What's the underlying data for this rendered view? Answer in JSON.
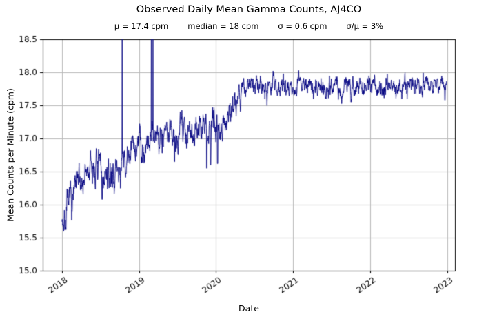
{
  "chart_data": {
    "type": "line",
    "title": "Observed Daily Mean Gamma Counts, AJ4CO",
    "stats_items": [
      "μ = 17.4 cpm",
      "median = 18 cpm",
      "σ = 0.6 cpm",
      "σ/μ = 3%"
    ],
    "xlabel": "Date",
    "ylabel": "Mean Counts per Minute (cpm)",
    "xlim": [
      2017.75,
      2023.1
    ],
    "ylim": [
      15.0,
      18.5
    ],
    "xticks": [
      2018,
      2019,
      2020,
      2021,
      2022,
      2023
    ],
    "yticks": [
      15.0,
      15.5,
      16.0,
      16.5,
      17.0,
      17.5,
      18.0,
      18.5
    ],
    "grid": true,
    "grid_color": "#b8b8b8",
    "spine_color": "#000000",
    "text_color": "#000000",
    "legend": "none",
    "series": [
      {
        "name": "daily-mean-gamma-counts",
        "color": "#000080",
        "x_start": 2018.0,
        "x_end": 2022.99,
        "seed": 7,
        "noise_sd_early": 0.13,
        "noise_sd_late": 0.085,
        "noise_transition_x": 2020.35,
        "trend_keypoints": [
          [
            2018.0,
            15.82
          ],
          [
            2018.04,
            15.72
          ],
          [
            2018.08,
            15.95
          ],
          [
            2018.14,
            16.1
          ],
          [
            2018.2,
            16.28
          ],
          [
            2018.28,
            16.4
          ],
          [
            2018.37,
            16.5
          ],
          [
            2018.45,
            16.58
          ],
          [
            2018.52,
            16.42
          ],
          [
            2018.6,
            16.38
          ],
          [
            2018.68,
            16.48
          ],
          [
            2018.76,
            16.52
          ],
          [
            2018.84,
            16.6
          ],
          [
            2018.92,
            16.85
          ],
          [
            2019.0,
            16.95
          ],
          [
            2019.06,
            16.9
          ],
          [
            2019.12,
            17.0
          ],
          [
            2019.2,
            17.08
          ],
          [
            2019.3,
            17.1
          ],
          [
            2019.4,
            17.08
          ],
          [
            2019.5,
            17.12
          ],
          [
            2019.6,
            17.2
          ],
          [
            2019.7,
            17.18
          ],
          [
            2019.8,
            17.12
          ],
          [
            2019.9,
            17.12
          ],
          [
            2020.0,
            17.18
          ],
          [
            2020.1,
            17.28
          ],
          [
            2020.2,
            17.45
          ],
          [
            2020.3,
            17.7
          ],
          [
            2020.38,
            17.78
          ],
          [
            2020.5,
            17.8
          ],
          [
            2021.0,
            17.8
          ],
          [
            2021.5,
            17.78
          ],
          [
            2022.0,
            17.8
          ],
          [
            2022.5,
            17.8
          ],
          [
            2022.99,
            17.8
          ]
        ],
        "spikes_up_x": [
          2018.78,
          2019.16,
          2019.18
        ],
        "dips": [
          [
            2018.52,
            16.08
          ],
          [
            2019.3,
            16.78
          ],
          [
            2019.46,
            16.65
          ],
          [
            2019.62,
            16.85
          ],
          [
            2019.88,
            16.55
          ],
          [
            2019.93,
            16.6
          ],
          [
            2020.02,
            16.62
          ],
          [
            2022.97,
            17.58
          ]
        ]
      }
    ]
  }
}
